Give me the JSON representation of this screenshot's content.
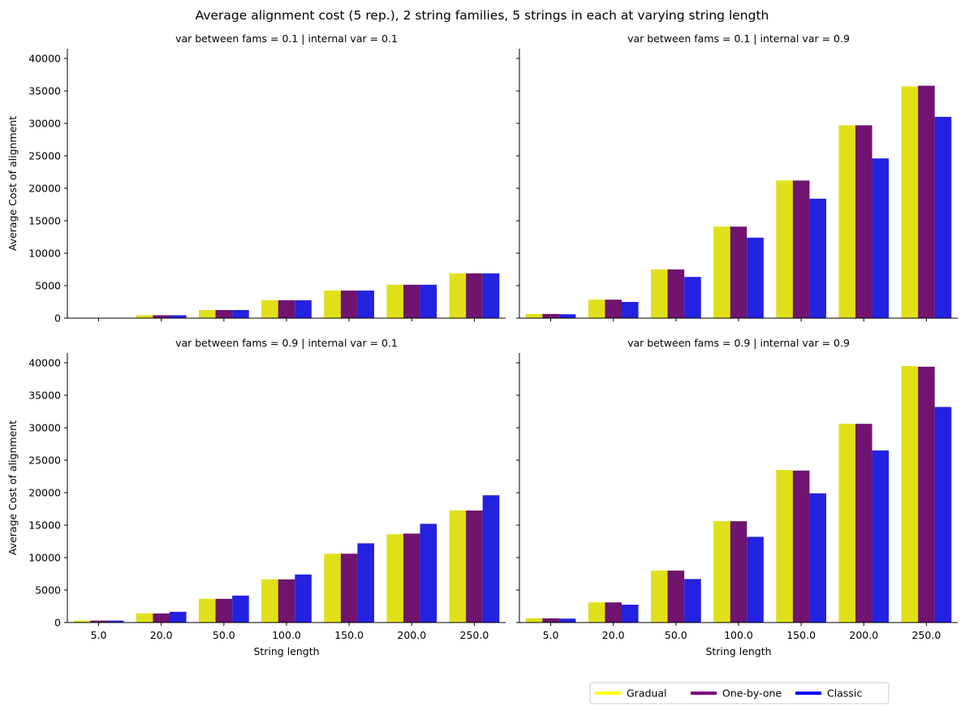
{
  "chart_data": {
    "type": "bar",
    "title": "Average alignment cost (5 rep.), 2 string families, 5 strings in each at varying string length",
    "xlabel": "String length",
    "ylabel": "Average Cost of alignment",
    "categories": [
      "5.0",
      "20.0",
      "50.0",
      "100.0",
      "150.0",
      "200.0",
      "250.0"
    ],
    "ylim": [
      0,
      41500
    ],
    "yticks": [
      0,
      5000,
      10000,
      15000,
      20000,
      25000,
      30000,
      35000,
      40000
    ],
    "grid": false,
    "legend_position": "bottom-right",
    "legend": [
      "Gradual",
      "One-by-one",
      "Classic"
    ],
    "colors": {
      "Gradual": "#e0e01a",
      "One-by-one": "#701470",
      "Classic": "#2222e0"
    },
    "legend_colors": {
      "Gradual": "#ffff00",
      "One-by-one": "#800080",
      "Classic": "#0000ff"
    },
    "panels": [
      {
        "title": "var between fams = 0.1 | internal var = 0.1",
        "series": [
          {
            "name": "Gradual",
            "values": [
              30,
              450,
              1250,
              2750,
              4250,
              5150,
              6900
            ]
          },
          {
            "name": "One-by-one",
            "values": [
              30,
              450,
              1250,
              2750,
              4250,
              5150,
              6900
            ]
          },
          {
            "name": "Classic",
            "values": [
              30,
              450,
              1250,
              2750,
              4250,
              5150,
              6900
            ]
          }
        ]
      },
      {
        "title": "var between fams = 0.1 | internal var = 0.9",
        "series": [
          {
            "name": "Gradual",
            "values": [
              650,
              2850,
              7500,
              14100,
              21200,
              29700,
              35700
            ]
          },
          {
            "name": "One-by-one",
            "values": [
              650,
              2850,
              7500,
              14100,
              21200,
              29700,
              35800
            ]
          },
          {
            "name": "Classic",
            "values": [
              600,
              2500,
              6350,
              12400,
              18400,
              24600,
              31000
            ]
          }
        ]
      },
      {
        "title": "var between fams = 0.9 | internal var = 0.1",
        "series": [
          {
            "name": "Gradual",
            "values": [
              300,
              1400,
              3650,
              6650,
              10600,
              13600,
              17250
            ]
          },
          {
            "name": "One-by-one",
            "values": [
              300,
              1400,
              3650,
              6650,
              10600,
              13700,
              17250
            ]
          },
          {
            "name": "Classic",
            "values": [
              300,
              1650,
              4150,
              7400,
              12200,
              15200,
              19600
            ]
          }
        ]
      },
      {
        "title": "var between fams = 0.9 | internal var = 0.9",
        "series": [
          {
            "name": "Gradual",
            "values": [
              650,
              3100,
              8000,
              15600,
              23500,
              30600,
              39500
            ]
          },
          {
            "name": "One-by-one",
            "values": [
              650,
              3100,
              8000,
              15600,
              23400,
              30600,
              39400
            ]
          },
          {
            "name": "Classic",
            "values": [
              600,
              2750,
              6700,
              13200,
              19900,
              26500,
              33200
            ]
          }
        ]
      }
    ]
  }
}
